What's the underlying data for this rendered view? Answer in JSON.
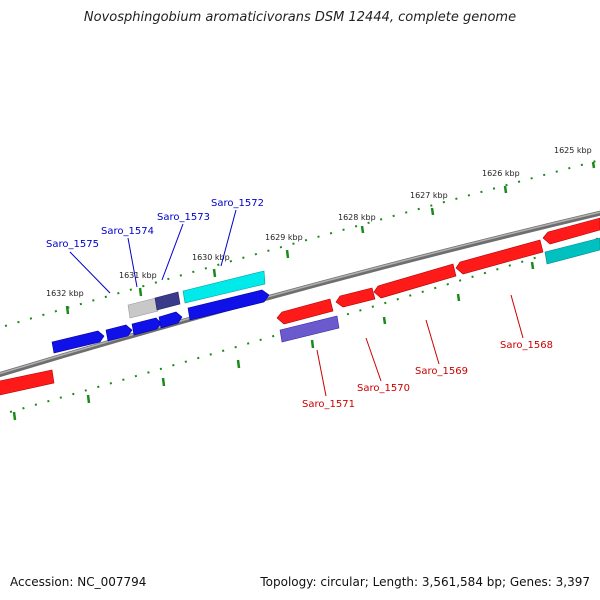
{
  "title": "Novosphingobium aromaticivorans DSM 12444, complete genome",
  "footer": {
    "accession": "Accession: NC_007794",
    "summary": "Topology: circular; Length: 3,561,584 bp; Genes: 3,397"
  },
  "colors": {
    "backbone": "#808080",
    "forward_gene": "#ff0000",
    "forward_label": "#cc0000",
    "reverse_gene": "#0000ff",
    "reverse_label": "#0000cc",
    "cyan_gene": "#00e0e0",
    "tick": "#1a8a1a"
  },
  "kbp_ticks": [
    "1625 kbp",
    "1626 kbp",
    "1627 kbp",
    "1628 kbp",
    "1629 kbp",
    "1630 kbp",
    "1631 kbp",
    "1632 kbp"
  ],
  "reverse_strand_labels": [
    "Saro_1575",
    "Saro_1574",
    "Saro_1573",
    "Saro_1572"
  ],
  "forward_strand_labels": [
    "Saro_1571",
    "Saro_1570",
    "Saro_1569",
    "Saro_1568"
  ]
}
